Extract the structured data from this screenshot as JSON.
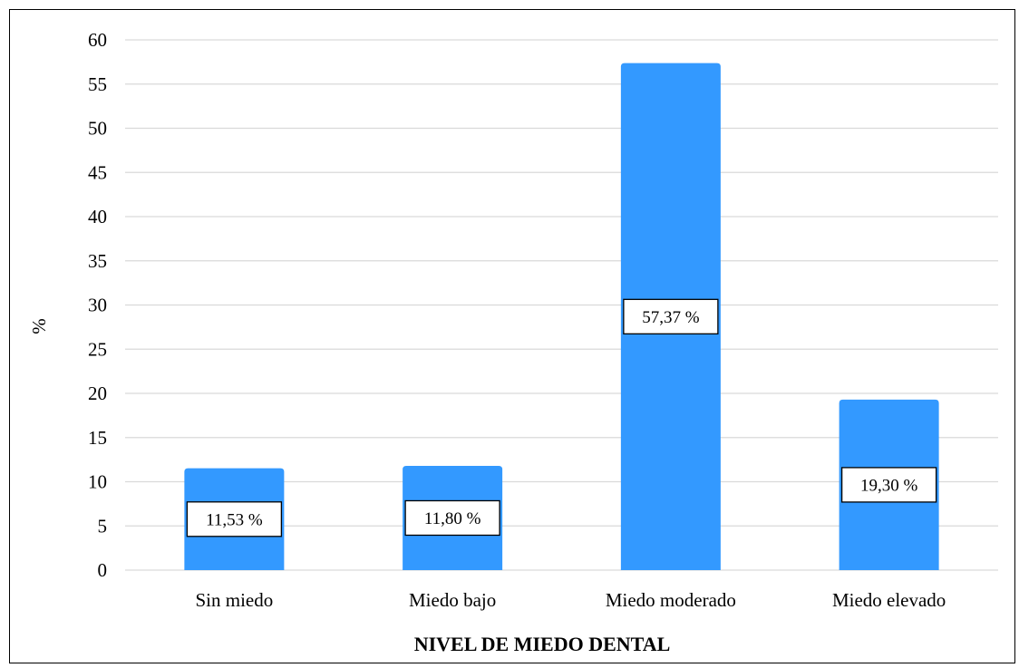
{
  "chart_data": {
    "type": "bar",
    "categories": [
      "Sin miedo",
      "Miedo bajo",
      "Miedo moderado",
      "Miedo elevado"
    ],
    "values": [
      11.53,
      11.8,
      57.37,
      19.3
    ],
    "data_labels": [
      "11,53 %",
      "11,80 %",
      "57,37 %",
      "19,30 %"
    ],
    "ylabel": "%",
    "xlabel": "NIVEL DE MIEDO DENTAL",
    "ylim": [
      0,
      60
    ],
    "yticks": [
      0,
      5,
      10,
      15,
      20,
      25,
      30,
      35,
      40,
      45,
      50,
      55,
      60
    ],
    "grid": true,
    "bar_color": "#3399ff"
  }
}
